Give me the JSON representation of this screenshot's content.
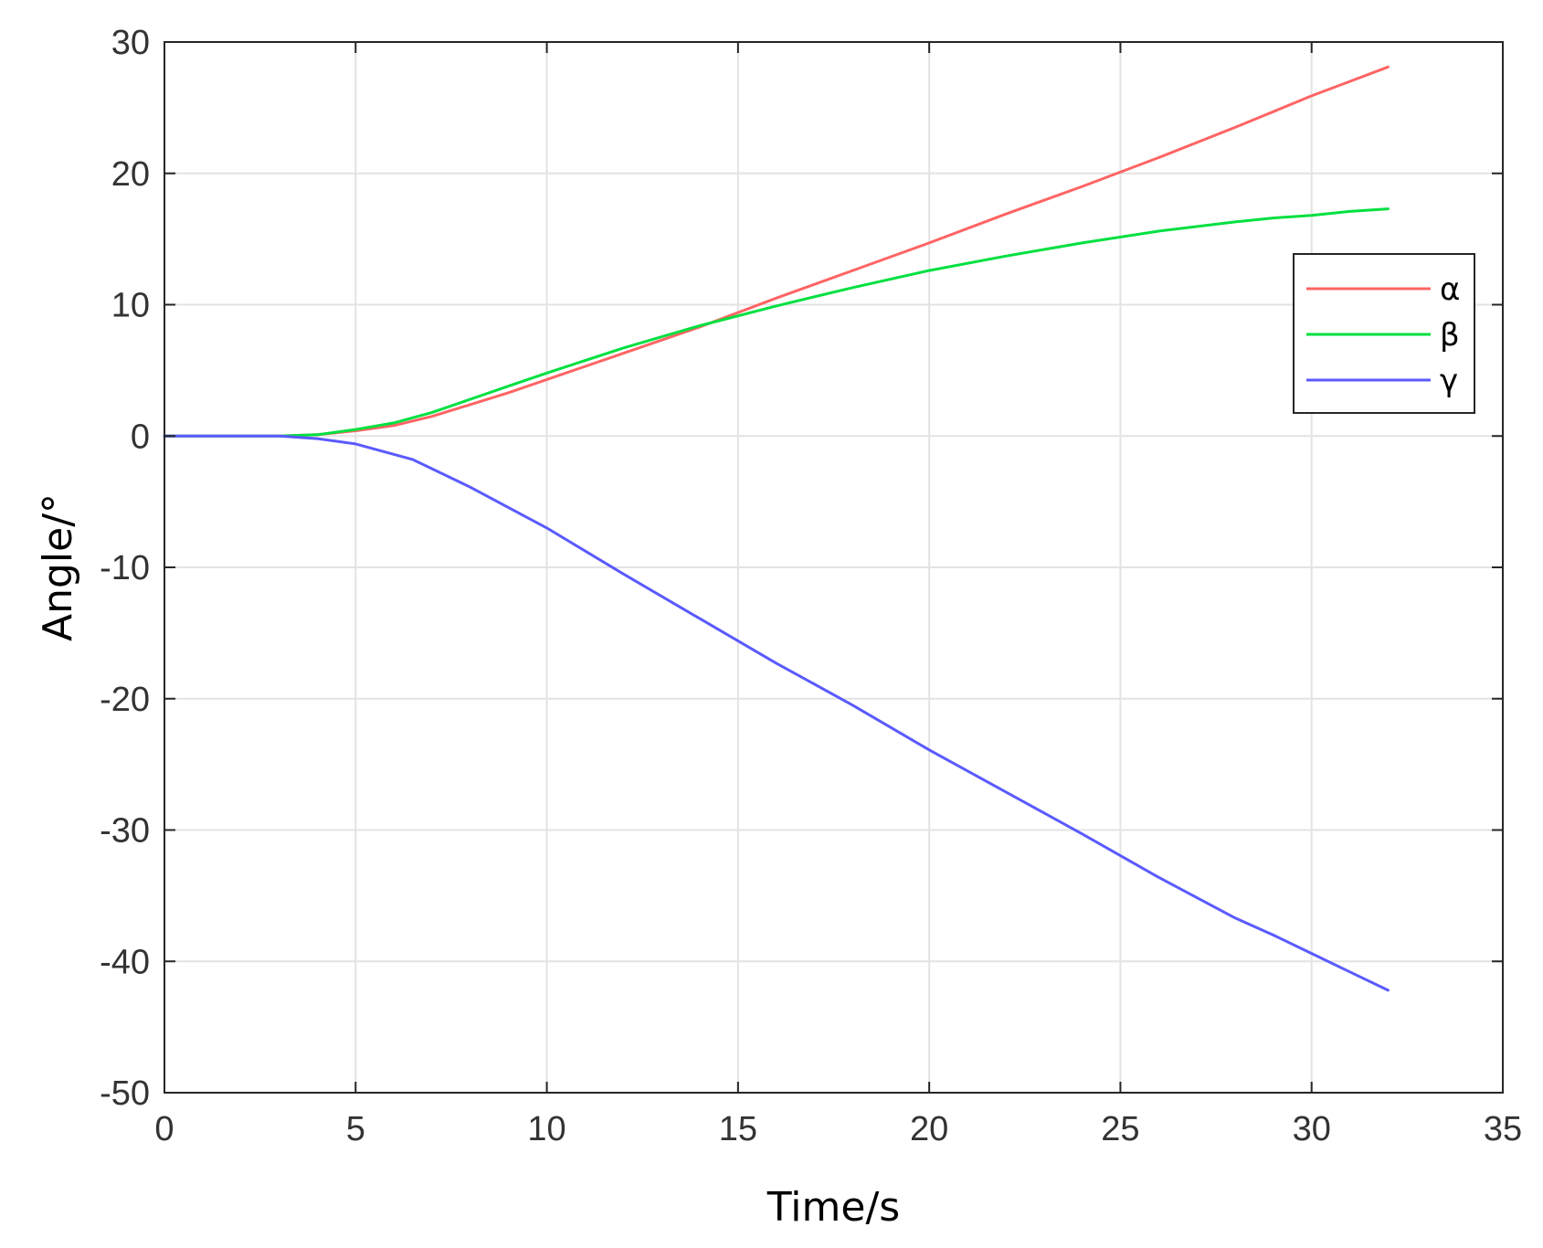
{
  "chart_data": {
    "type": "line",
    "title": "",
    "xlabel": "Time/s",
    "ylabel": "Angle/°",
    "xlim": [
      0,
      35
    ],
    "ylim": [
      -50,
      30
    ],
    "xticks": [
      0,
      5,
      10,
      15,
      20,
      25,
      30,
      35
    ],
    "yticks": [
      30,
      20,
      10,
      0,
      -10,
      -20,
      -30,
      -40,
      -50
    ],
    "grid": true,
    "legend_position": "right",
    "series": [
      {
        "name": "α",
        "color": "#ff6464",
        "x": [
          0,
          3,
          4,
          5,
          6,
          7,
          8,
          9,
          10,
          12,
          14,
          16,
          18,
          20,
          22,
          24,
          26,
          28,
          29,
          30,
          31,
          32
        ],
        "y": [
          0,
          0,
          0.1,
          0.4,
          0.8,
          1.5,
          2.4,
          3.3,
          4.3,
          6.3,
          8.3,
          10.5,
          12.6,
          14.7,
          16.9,
          19.0,
          21.2,
          23.5,
          24.7,
          25.9,
          27.0,
          28.1
        ]
      },
      {
        "name": "β",
        "color": "#00e040",
        "x": [
          0,
          3,
          4,
          5,
          6,
          7,
          8,
          9,
          10,
          12,
          14,
          16,
          18,
          20,
          22,
          24,
          26,
          28,
          29,
          30,
          31,
          32
        ],
        "y": [
          0,
          0,
          0.1,
          0.5,
          1.0,
          1.8,
          2.8,
          3.8,
          4.8,
          6.7,
          8.4,
          9.9,
          11.3,
          12.6,
          13.7,
          14.7,
          15.6,
          16.3,
          16.6,
          16.8,
          17.1,
          17.3
        ]
      },
      {
        "name": "γ",
        "color": "#5a5aff",
        "x": [
          0,
          3,
          4,
          5,
          6.5,
          8,
          10,
          12,
          14,
          16,
          18,
          20,
          22,
          24,
          26,
          28,
          29,
          30,
          31,
          32
        ],
        "y": [
          0,
          0,
          -0.2,
          -0.6,
          -1.8,
          -3.9,
          -7.0,
          -10.5,
          -13.9,
          -17.3,
          -20.5,
          -23.9,
          -27.1,
          -30.3,
          -33.6,
          -36.7,
          -38.0,
          -39.4,
          -40.8,
          -42.2
        ]
      }
    ]
  }
}
